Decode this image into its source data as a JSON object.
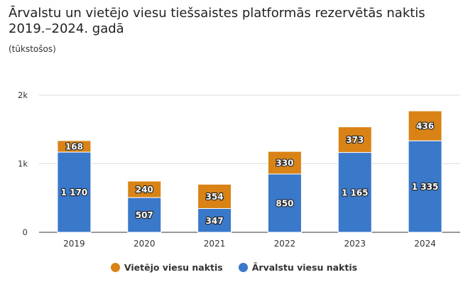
{
  "title": "Ārvalstu un vietējo viesu tiešsaistes platformās rezervētās naktis 2019.–2024. gadā",
  "subtitle": "(tūkstošos)",
  "colors": {
    "vietejo": "#d98316",
    "arvalstu": "#3a78c9",
    "grid": "#dddddd",
    "axis": "#333333"
  },
  "chart_data": {
    "type": "bar",
    "stacked": true,
    "categories": [
      "2019",
      "2020",
      "2021",
      "2022",
      "2023",
      "2024"
    ],
    "series": [
      {
        "name": "Ārvalstu viesu naktis",
        "values": [
          1170,
          507,
          347,
          850,
          1165,
          1335
        ],
        "labels": [
          "1 170",
          "507",
          "347",
          "850",
          "1 165",
          "1 335"
        ]
      },
      {
        "name": "Vietējo viesu naktis",
        "values": [
          168,
          240,
          354,
          330,
          373,
          436
        ],
        "labels": [
          "168",
          "240",
          "354",
          "330",
          "373",
          "436"
        ]
      }
    ],
    "yticks": [
      {
        "value": 0,
        "label": "0"
      },
      {
        "value": 1000,
        "label": "1k"
      },
      {
        "value": 2000,
        "label": "2k"
      }
    ],
    "ylim": [
      0,
      2000
    ],
    "grid": true,
    "legend_position": "bottom"
  },
  "legend": [
    {
      "label": "Vietējo viesu naktis",
      "color": "#d98316"
    },
    {
      "label": "Ārvalstu viesu naktis",
      "color": "#3a78c9"
    }
  ]
}
